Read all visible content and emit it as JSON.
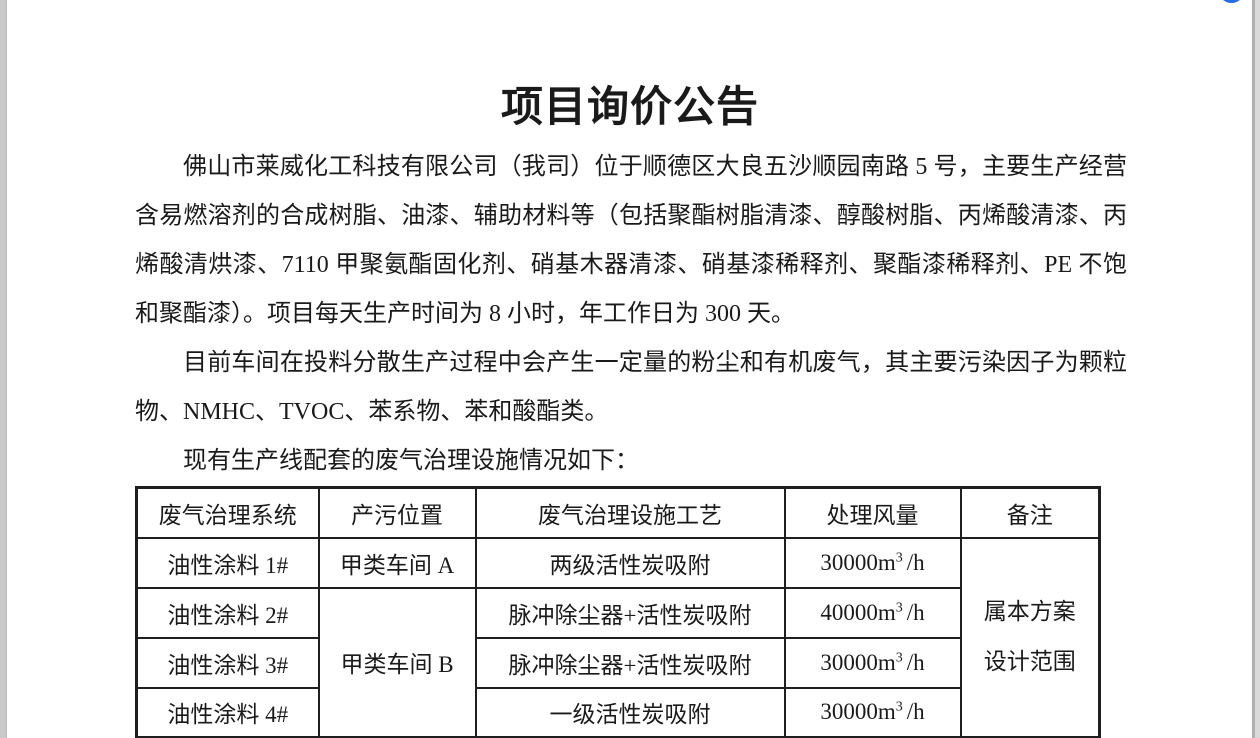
{
  "document": {
    "title": "项目询价公告",
    "paragraphs": [
      "佛山市莱威化工科技有限公司（我司）位于顺德区大良五沙顺园南路 5 号，主要生产经营含易燃溶剂的合成树脂、油漆、辅助材料等（包括聚酯树脂清漆、醇酸树脂、丙烯酸清漆、丙烯酸清烘漆、7110 甲聚氨酯固化剂、硝基木器清漆、硝基漆稀释剂、聚酯漆稀释剂、PE 不饱和聚酯漆）。项目每天生产时间为 8 小时，年工作日为 300 天。",
      "目前车间在投料分散生产过程中会产生一定量的粉尘和有机废气，其主要污染因子为颗粒物、NMHC、TVOC、苯系物、苯和酸酯类。",
      "现有生产线配套的废气治理设施情况如下："
    ]
  },
  "table": {
    "headers": [
      "废气治理系统",
      "产污位置",
      "废气治理设施工艺",
      "处理风量",
      "备注"
    ],
    "rows": [
      {
        "system": "油性涂料 1#",
        "location": "甲类车间 A",
        "process": "两级活性炭吸附",
        "flow": {
          "base": "30000m",
          "sup": "3",
          "unit": "/h"
        }
      },
      {
        "system": "油性涂料 2#",
        "location": "甲类车间 B",
        "process": "脉冲除尘器+活性炭吸附",
        "flow": {
          "base": "40000m",
          "sup": "3",
          "unit": "/h"
        }
      },
      {
        "system": "油性涂料 3#",
        "process": "脉冲除尘器+活性炭吸附",
        "flow": {
          "base": "30000m",
          "sup": "3",
          "unit": "/h"
        }
      },
      {
        "system": "油性涂料 4#",
        "process": "一级活性炭吸附",
        "flow": {
          "base": "30000m",
          "sup": "3",
          "unit": "/h"
        }
      }
    ],
    "remark": {
      "line1": "属本方案",
      "line2": "设计范围"
    }
  },
  "ui": {
    "accent_blue": "#2a6ce2"
  }
}
